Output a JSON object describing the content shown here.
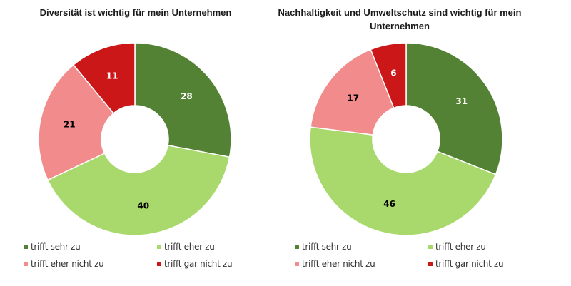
{
  "chart_data": [
    {
      "type": "pie",
      "donut": true,
      "title": "Diversität ist wichtig für mein Unternehmen",
      "categories": [
        "trifft sehr zu",
        "trifft eher zu",
        "trifft eher nicht zu",
        "trifft gar nicht zu"
      ],
      "values": [
        28,
        40,
        21,
        11
      ],
      "label_colors": [
        "#ffffff",
        "#000000",
        "#000000",
        "#ffffff"
      ],
      "legend_position": "bottom"
    },
    {
      "type": "pie",
      "donut": true,
      "title": "Nachhaltigkeit und Umweltschutz sind wichtig für mein Unternehmen",
      "categories": [
        "trifft sehr zu",
        "trifft eher zu",
        "trifft eher nicht zu",
        "trifft gar nicht zu"
      ],
      "values": [
        31,
        46,
        17,
        6
      ],
      "label_colors": [
        "#ffffff",
        "#000000",
        "#000000",
        "#ffffff"
      ],
      "legend_position": "bottom"
    }
  ],
  "colors": [
    "#548235",
    "#a9d96c",
    "#f28b8b",
    "#cc1719"
  ],
  "titles": [
    "Diversität ist wichtig für mein Unternehmen",
    "Nachhaltigkeit und Umweltschutz sind wichtig für mein Unternehmen"
  ],
  "legend": [
    "trifft sehr zu",
    "trifft eher zu",
    "trifft eher nicht zu",
    "trifft gar nicht zu"
  ]
}
